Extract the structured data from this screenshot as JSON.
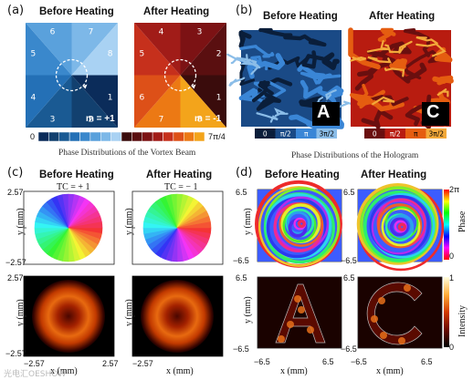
{
  "panels": {
    "a": {
      "label": "(a)",
      "before": "Before Heating",
      "after": "After Heating",
      "m_before": "m = +1",
      "m_after": "m = -1",
      "cb_min": "0",
      "cb_max": "7π/4",
      "caption": "Phase Distributions of the Vortex Beam",
      "blue": [
        "#0b2c5a",
        "#12406f",
        "#1a5a93",
        "#2470b6",
        "#3a88cc",
        "#5aa1dc",
        "#7db8e8",
        "#a9d2f3"
      ],
      "red": [
        "#3a0c0c",
        "#5a0f10",
        "#7c1214",
        "#a11c18",
        "#c6301c",
        "#dd5018",
        "#ec7914",
        "#f3a41b"
      ],
      "nums_before": [
        "1",
        "2",
        "3",
        "4",
        "5",
        "6",
        "7",
        "8"
      ],
      "nums_after": [
        "1",
        "2",
        "3",
        "4",
        "5",
        "6",
        "7",
        "8"
      ]
    },
    "b": {
      "label": "(b)",
      "before": "Before Heating",
      "after": "After Heating",
      "letter_before": "A",
      "letter_after": "C",
      "cb_before": [
        "0",
        "π/2",
        "π",
        "3π/2"
      ],
      "cb_after": [
        "0",
        "π/2",
        "π",
        "3π/2"
      ],
      "blue": [
        "#0a1e3a",
        "#1a4a86",
        "#3a86d6",
        "#8bbde8"
      ],
      "red": [
        "#6a0f0f",
        "#b81c10",
        "#e55d10",
        "#f3a93a"
      ],
      "caption": "Phase Distributions of the Hologram"
    },
    "c": {
      "label": "(c)",
      "before": "Before Heating",
      "after": "After Heating",
      "tc_before": "TC = + 1",
      "tc_after": "TC = − 1",
      "ylab": "y (mm)",
      "xlab": "x (mm)",
      "t_hi": "2.57",
      "t_lo": "−2.57",
      "x_lo": "−2.57",
      "x_hi": "2.57"
    },
    "d": {
      "label": "(d)",
      "before": "Before Heating",
      "after": "After Heating",
      "ylab": "y (mm)",
      "xlab": "x (mm)",
      "t_hi": "6.5",
      "t_lo": "−6.5",
      "x_lo": "−6.5",
      "x_hi": "6.5",
      "phase_cb": {
        "label": "Phase",
        "top": "2π",
        "bottom": "0"
      },
      "int_cb": {
        "label": "Intensity",
        "top": "1",
        "bottom": "0"
      }
    }
  },
  "watermark": "光电汇OESHOW"
}
